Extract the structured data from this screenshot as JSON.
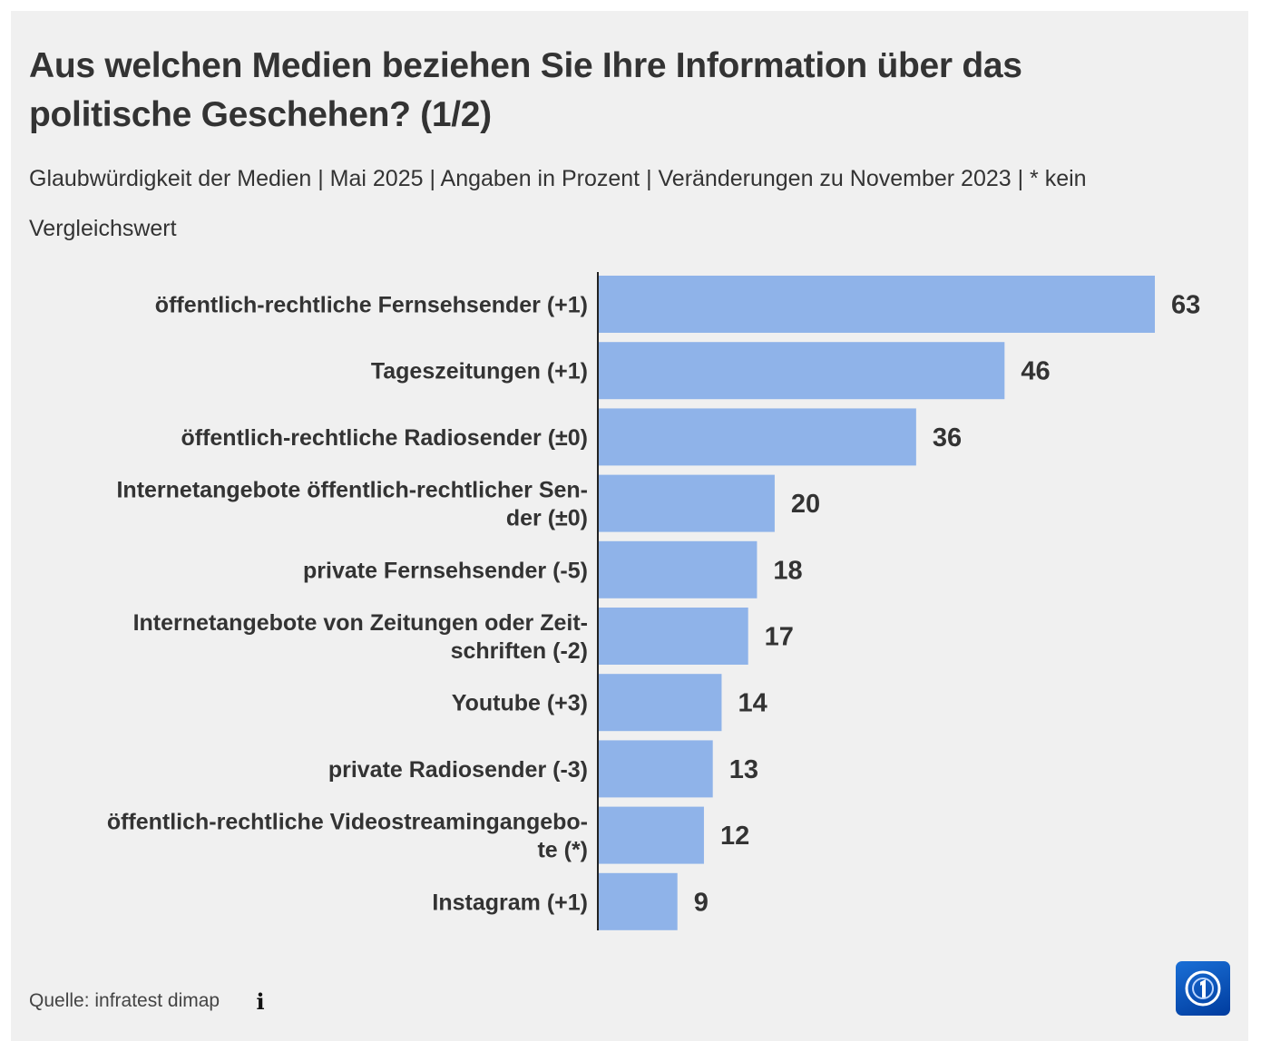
{
  "chart_data": {
    "type": "bar",
    "orientation": "horizontal",
    "title": "Aus welchen Medien beziehen Sie Ihre Information über das politische Geschehen? (1/2)",
    "subtitle": "Glaubwürdigkeit der Medien | Mai 2025 | Angaben in Prozent | Veränderungen zu November 2023 | * kein Vergleichswert",
    "categories": [
      [
        "öffentlich-rechtliche Fernsehsender (+1)"
      ],
      [
        "Tageszeitungen (+1)"
      ],
      [
        "öffentlich-rechtliche Radiosender (±0)"
      ],
      [
        "Internetangebote öffentlich-rechtlicher Sen-",
        "der (±0)"
      ],
      [
        "private Fernsehsender (-5)"
      ],
      [
        "Internetangebote von Zeitungen oder Zeit-",
        "schriften (-2)"
      ],
      [
        "Youtube (+3)"
      ],
      [
        "private Radiosender (-3)"
      ],
      [
        "öffentlich-rechtliche Videostreamingangebo-",
        "te (*)"
      ],
      [
        "Instagram (+1)"
      ]
    ],
    "values": [
      63,
      46,
      36,
      20,
      18,
      17,
      14,
      13,
      12,
      9
    ],
    "xlim": [
      0,
      63
    ],
    "grid": false,
    "legend": "none",
    "bar_color": "#8fb3e9",
    "axis_color": "#222222"
  },
  "source": "Quelle: infratest dimap",
  "info_icon": "info-icon",
  "logo_icon": "tagesschau-logo-icon"
}
